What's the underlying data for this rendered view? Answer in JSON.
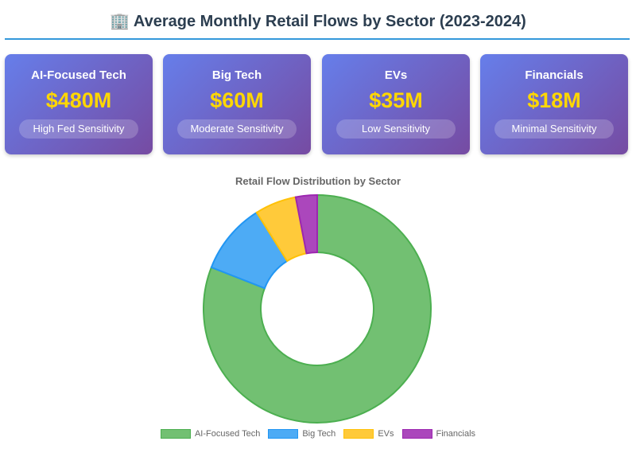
{
  "header": {
    "icon": "office-building-icon",
    "title": "🏢 Average Monthly Retail Flows by Sector (2023-2024)"
  },
  "cards": [
    {
      "name": "AI-Focused Tech",
      "value": "$480M",
      "sensitivity": "High Fed Sensitivity"
    },
    {
      "name": "Big Tech",
      "value": "$60M",
      "sensitivity": "Moderate Sensitivity"
    },
    {
      "name": "EVs",
      "value": "$35M",
      "sensitivity": "Low Sensitivity"
    },
    {
      "name": "Financials",
      "value": "$18M",
      "sensitivity": "Minimal Sensitivity"
    }
  ],
  "chart_data": {
    "type": "doughnut",
    "title": "Retail Flow Distribution by Sector",
    "categories": [
      "AI-Focused Tech",
      "Big Tech",
      "EVs",
      "Financials"
    ],
    "values": [
      480,
      60,
      35,
      18
    ],
    "colors": [
      "#72c072",
      "#4dabf5",
      "#ffca3a",
      "#ab47bc"
    ],
    "borders": [
      "#4caf50",
      "#2196f3",
      "#ffc107",
      "#9c27b0"
    ],
    "legend": "bottom"
  }
}
